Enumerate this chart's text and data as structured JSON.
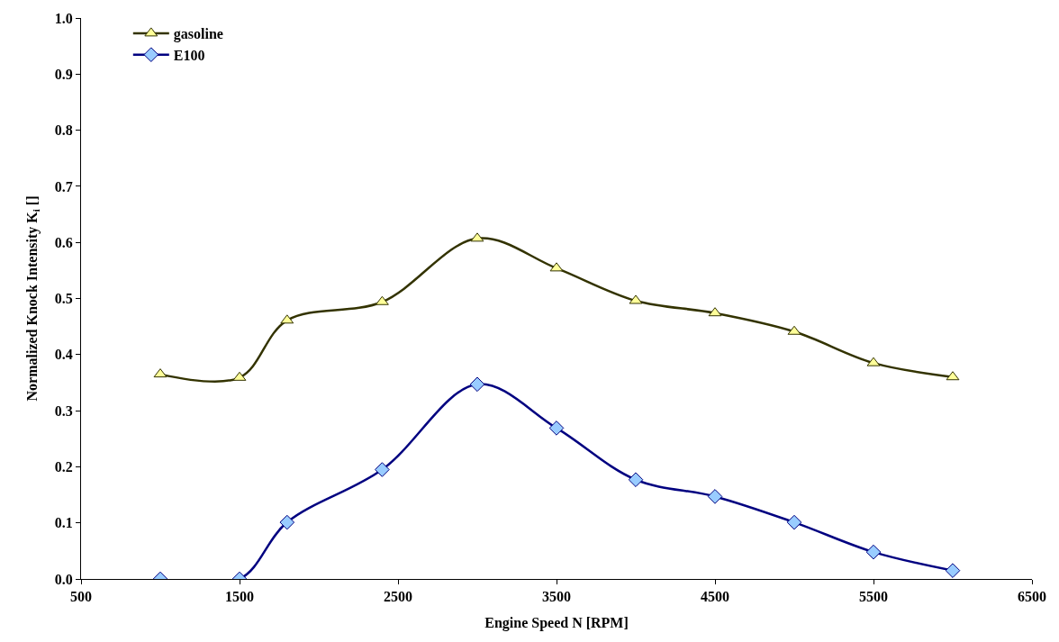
{
  "chart_data": {
    "type": "line",
    "xlabel": "Engine Speed N [RPM]",
    "ylabel": "Normalized Knock Intensity K$_{i}$ []",
    "x": [
      1000,
      1500,
      1800,
      2400,
      3000,
      3500,
      4000,
      4500,
      5000,
      5500,
      6000
    ],
    "series": [
      {
        "name": "gasoline",
        "color": "#333300",
        "colors": [
          "#ffff99",
          "#ffff99",
          "#ffff99",
          "#ffff99",
          "#ffff99",
          "#ffff99",
          "#ffff99",
          "#ffff99",
          "#ffff99",
          "#ffff99",
          "#ffff99"
        ],
        "marker": "triangle",
        "values": [
          0.365,
          0.359,
          0.461,
          0.494,
          0.607,
          0.554,
          0.496,
          0.474,
          0.441,
          0.385,
          0.36
        ]
      },
      {
        "name": "E100",
        "color": "#000080",
        "colors": [
          "#99ccff",
          "#99ccff",
          "#99ccff",
          "#99ccff",
          "#99ccff",
          "#99ccff",
          "#99ccff",
          "#99ccff",
          "#99ccff",
          "#99ccff",
          "#99ccff"
        ],
        "marker": "diamond",
        "values": [
          0.0,
          0.0,
          0.101,
          0.195,
          0.347,
          0.269,
          0.177,
          0.147,
          0.101,
          0.048,
          0.015
        ]
      }
    ],
    "xlim": [
      500,
      6500
    ],
    "xticks": [
      500,
      1500,
      2500,
      3500,
      4500,
      5500,
      6500
    ],
    "ylim": [
      0,
      1.0
    ],
    "yticks": [
      {
        "value": 0,
        "label": "0.0"
      },
      0.1,
      0.2,
      0.3,
      0.4,
      0.5,
      0.6,
      0.7,
      0.8,
      0.9,
      {
        "value": 1.0,
        "label": "1.0"
      }
    ],
    "legend": "top left",
    "line_style": "solid"
  }
}
